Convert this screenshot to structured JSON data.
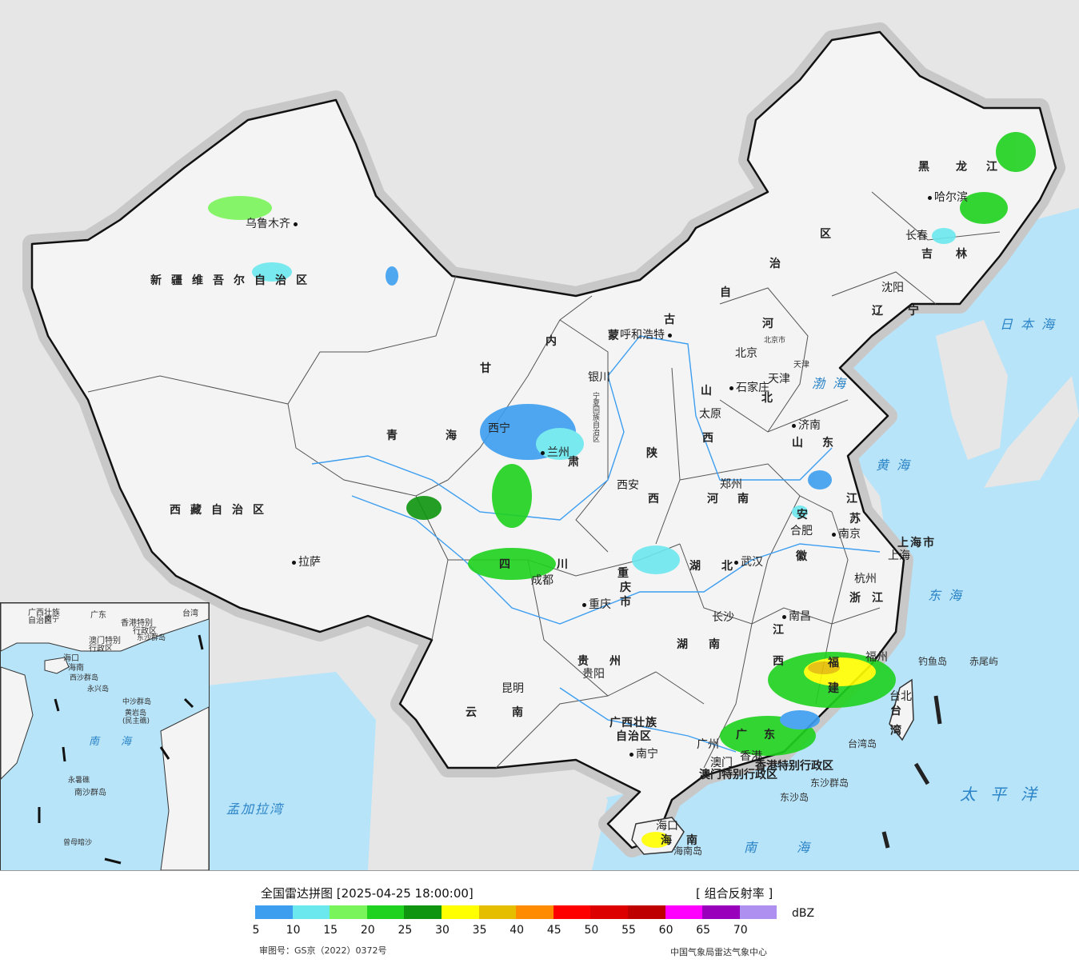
{
  "title": "全国雷达拼图 [2025-04-25 18:00:00]",
  "product": "[ 组合反射率 ]",
  "unit": "dBZ",
  "legend": {
    "colors": [
      "#3d9ef0",
      "#6be8ee",
      "#79f45a",
      "#1fd21f",
      "#0f950f",
      "#ffff00",
      "#e6be00",
      "#ff8c00",
      "#ff0000",
      "#dc0000",
      "#be0000",
      "#ff00ff",
      "#9900bb",
      "#ad90f0"
    ],
    "ticks": [
      "5",
      "10",
      "15",
      "20",
      "25",
      "30",
      "35",
      "40",
      "45",
      "50",
      "55",
      "60",
      "65",
      "70"
    ]
  },
  "approval": "审图号：GS京（2022）0372号",
  "agency": "中国气象局雷达气象中心",
  "provinces": [
    {
      "name": "新疆维吾尔自治区"
    },
    {
      "name": "西藏自治区"
    },
    {
      "name": "青海"
    },
    {
      "name": "甘"
    },
    {
      "name": "肃"
    },
    {
      "name": "内"
    },
    {
      "name": "蒙"
    },
    {
      "name": "古"
    },
    {
      "name": "自"
    },
    {
      "name": "治"
    },
    {
      "name": "区"
    },
    {
      "name": "黑"
    },
    {
      "name": "龙"
    },
    {
      "name": "江"
    },
    {
      "name": "吉"
    },
    {
      "name": "林"
    },
    {
      "name": "辽"
    },
    {
      "name": "宁"
    },
    {
      "name": "河"
    },
    {
      "name": "北"
    },
    {
      "name": "山"
    },
    {
      "name": "西"
    },
    {
      "name": "山"
    },
    {
      "name": "东"
    },
    {
      "name": "陕"
    },
    {
      "name": "西"
    },
    {
      "name": "河"
    },
    {
      "name": "南"
    },
    {
      "name": "江"
    },
    {
      "name": "苏"
    },
    {
      "name": "安"
    },
    {
      "name": "徽"
    },
    {
      "name": "上海市"
    },
    {
      "name": "浙"
    },
    {
      "name": "江"
    },
    {
      "name": "湖"
    },
    {
      "name": "北"
    },
    {
      "name": "四"
    },
    {
      "name": "川"
    },
    {
      "name": "重"
    },
    {
      "name": "庆"
    },
    {
      "name": "市"
    },
    {
      "name": "贵"
    },
    {
      "name": "州"
    },
    {
      "name": "云"
    },
    {
      "name": "南"
    },
    {
      "name": "湖"
    },
    {
      "name": "南"
    },
    {
      "name": "江"
    },
    {
      "name": "西"
    },
    {
      "name": "福"
    },
    {
      "name": "建"
    },
    {
      "name": "广"
    },
    {
      "name": "东"
    },
    {
      "name": "广西壮族"
    },
    {
      "name": "自治区"
    },
    {
      "name": "台"
    },
    {
      "name": "湾"
    },
    {
      "name": "海"
    },
    {
      "name": "南"
    },
    {
      "name": "北京市"
    },
    {
      "name": "天津"
    },
    {
      "name": "宁夏回族自治区"
    },
    {
      "name": "香港特别行政区"
    },
    {
      "name": "澳门特别行政区"
    }
  ],
  "cities": [
    {
      "name": "乌鲁木齐"
    },
    {
      "name": "拉萨"
    },
    {
      "name": "西宁"
    },
    {
      "name": "兰州"
    },
    {
      "name": "银川"
    },
    {
      "name": "呼和浩特"
    },
    {
      "name": "哈尔滨"
    },
    {
      "name": "长春"
    },
    {
      "name": "沈阳"
    },
    {
      "name": "北京"
    },
    {
      "name": "天津"
    },
    {
      "name": "石家庄"
    },
    {
      "name": "太原"
    },
    {
      "name": "济南"
    },
    {
      "name": "郑州"
    },
    {
      "name": "西安"
    },
    {
      "name": "合肥"
    },
    {
      "name": "南京"
    },
    {
      "name": "上海"
    },
    {
      "name": "杭州"
    },
    {
      "name": "武汉"
    },
    {
      "name": "成都"
    },
    {
      "name": "重庆"
    },
    {
      "name": "贵阳"
    },
    {
      "name": "长沙"
    },
    {
      "name": "南昌"
    },
    {
      "name": "福州"
    },
    {
      "name": "昆明"
    },
    {
      "name": "南宁"
    },
    {
      "name": "广州"
    },
    {
      "name": "澳门"
    },
    {
      "name": "香港"
    },
    {
      "name": "海口"
    },
    {
      "name": "台北"
    }
  ],
  "seas": [
    {
      "name": "日本海"
    },
    {
      "name": "渤海"
    },
    {
      "name": "黄海"
    },
    {
      "name": "东海"
    },
    {
      "name": "太平洋"
    },
    {
      "name": "南海"
    },
    {
      "name": "孟加拉湾"
    }
  ],
  "islands": [
    {
      "name": "钓鱼岛"
    },
    {
      "name": "赤尾屿"
    },
    {
      "name": "台湾岛"
    },
    {
      "name": "东沙群岛"
    },
    {
      "name": "东沙岛"
    },
    {
      "name": "海南岛"
    }
  ],
  "inset": {
    "labels": [
      {
        "name": "广西壮族"
      },
      {
        "name": "自治区"
      },
      {
        "name": "南宁"
      },
      {
        "name": "广东"
      },
      {
        "name": "香港特别"
      },
      {
        "name": "行政区"
      },
      {
        "name": "澳门特别"
      },
      {
        "name": "行政区"
      },
      {
        "name": "台湾"
      },
      {
        "name": "东沙群岛"
      },
      {
        "name": "海口"
      },
      {
        "name": "海南"
      },
      {
        "name": "西沙群岛"
      },
      {
        "name": "永兴岛"
      },
      {
        "name": "中沙群岛"
      },
      {
        "name": "黄岩岛"
      },
      {
        "name": "(民主礁)"
      },
      {
        "name": "南"
      },
      {
        "name": "海"
      },
      {
        "name": "永暑礁"
      },
      {
        "name": "南沙群岛"
      },
      {
        "name": "曾母暗沙"
      }
    ]
  }
}
